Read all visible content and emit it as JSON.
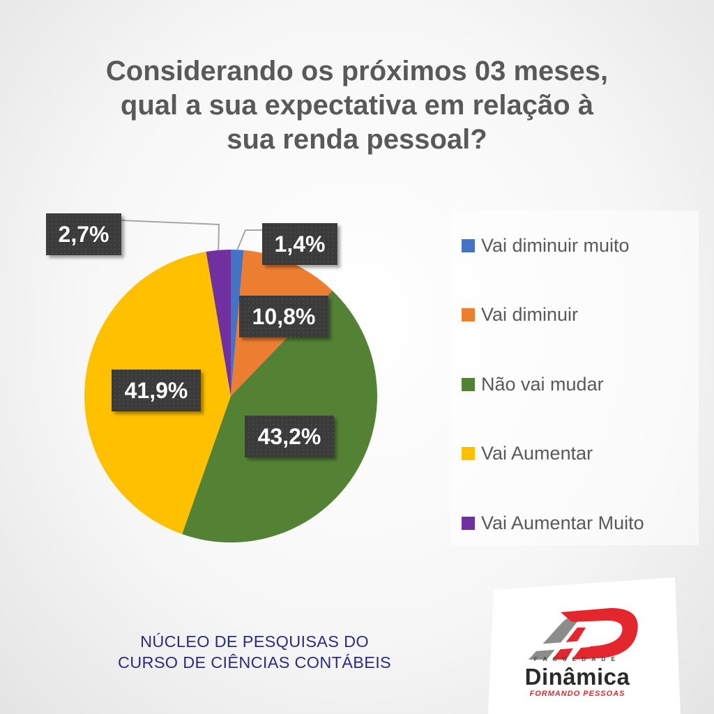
{
  "title_lines": [
    "Considerando os próximos 03 meses,",
    "qual a sua expectativa em relação à",
    "sua renda pessoal?"
  ],
  "chart_data": {
    "type": "pie",
    "title": "Considerando os próximos 03 meses, qual a sua expectativa em relação à sua renda pessoal?",
    "categories": [
      "Vai diminuir muito",
      "Vai diminuir",
      "Não vai mudar",
      "Vai Aumentar",
      "Vai Aumentar Muito"
    ],
    "values": [
      1.4,
      10.8,
      43.2,
      41.9,
      2.7
    ],
    "data_labels": [
      "1,4%",
      "10,8%",
      "43,2%",
      "41,9%",
      "2,7%"
    ],
    "colors": [
      "#4472c4",
      "#ed7d31",
      "#548235",
      "#ffc000",
      "#7030a0"
    ],
    "legend_position": "right"
  },
  "footer_lines": [
    "NÚCLEO DE PESQUISAS DO",
    "CURSO DE CIÊNCIAS CONTÁBEIS"
  ],
  "logo": {
    "eyebrow": "FACULDADE",
    "name": "Dinâmica",
    "tagline": "FORMANDO PESSOAS",
    "colors": {
      "red": "#e4262d",
      "gray": "#8c8c8c"
    }
  }
}
